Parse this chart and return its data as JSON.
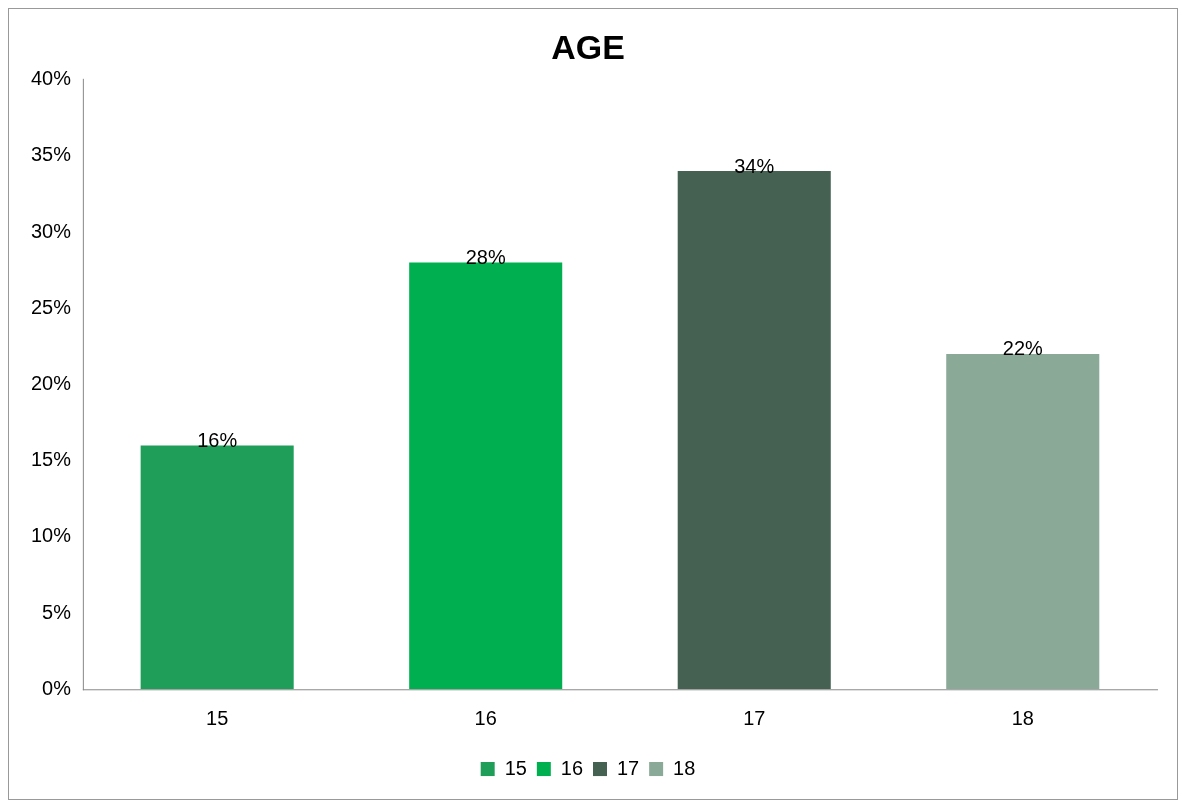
{
  "chart_data": {
    "type": "bar",
    "title": "AGE",
    "categories": [
      "15",
      "16",
      "17",
      "18"
    ],
    "series": [
      {
        "name": "15",
        "color": "#1f9e5a",
        "values": [
          16,
          null,
          null,
          null
        ],
        "value_labels": [
          "16%",
          null,
          null,
          null
        ]
      },
      {
        "name": "16",
        "color": "#00b050",
        "values": [
          null,
          28,
          null,
          null
        ],
        "value_labels": [
          null,
          "28%",
          null,
          null
        ]
      },
      {
        "name": "17",
        "color": "#446152",
        "values": [
          null,
          null,
          34,
          null
        ],
        "value_labels": [
          null,
          null,
          "34%",
          null
        ]
      },
      {
        "name": "18",
        "color": "#8aa997",
        "values": [
          null,
          null,
          null,
          22
        ],
        "value_labels": [
          null,
          null,
          null,
          "22%"
        ]
      }
    ],
    "ylim": [
      0,
      40
    ],
    "yticks": [
      {
        "value": 0,
        "label": "0%"
      },
      {
        "value": 5,
        "label": "5%"
      },
      {
        "value": 10,
        "label": "10%"
      },
      {
        "value": 15,
        "label": "15%"
      },
      {
        "value": 20,
        "label": "20%"
      },
      {
        "value": 25,
        "label": "25%"
      },
      {
        "value": 30,
        "label": "30%"
      },
      {
        "value": 35,
        "label": "35%"
      },
      {
        "value": 40,
        "label": "40%"
      }
    ],
    "grid": false,
    "legend": "bottom"
  }
}
